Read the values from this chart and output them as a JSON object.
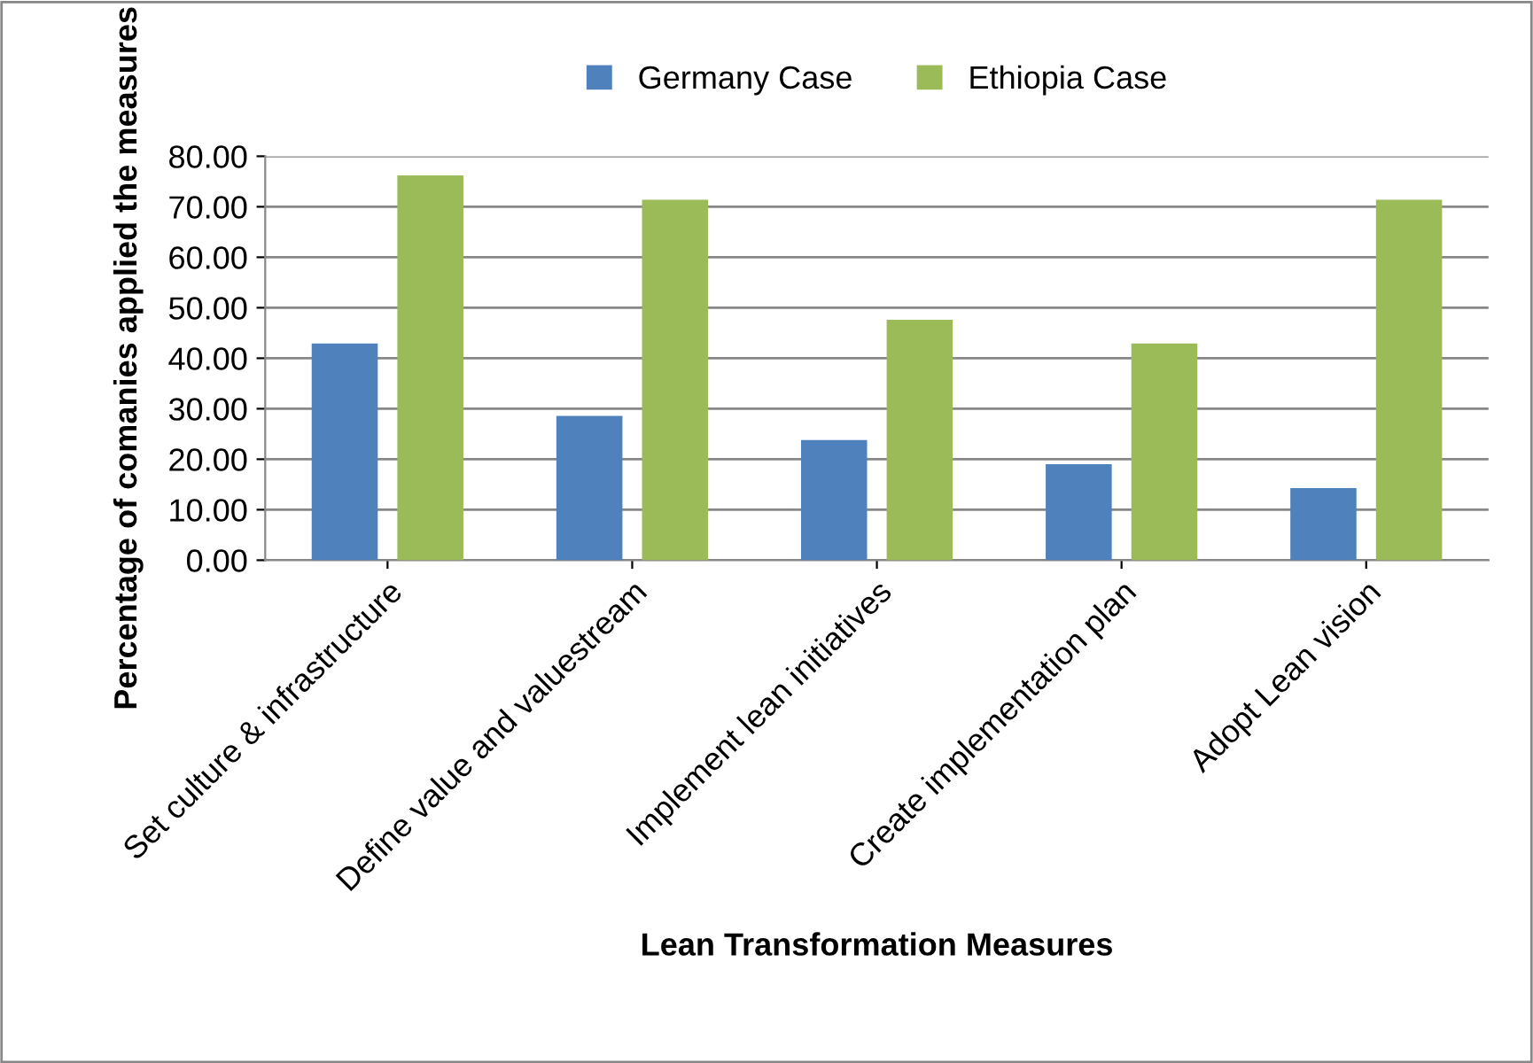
{
  "chart_data": {
    "type": "bar",
    "xlabel": "Lean Transformation Measures",
    "ylabel": "Percentage of comanies applied the measures",
    "categories": [
      "Set culture & infrastructure",
      "Define value and valuestream",
      "Implement lean initiatives",
      "Create implementation plan",
      "Adopt Lean vision"
    ],
    "series": [
      {
        "name": "Germany Case",
        "color": "#4f81bd",
        "values": [
          42.9,
          28.6,
          23.8,
          19.0,
          14.3
        ]
      },
      {
        "name": "Ethiopia Case",
        "color": "#9bbb59",
        "values": [
          76.2,
          71.4,
          47.6,
          42.9,
          71.4
        ]
      }
    ],
    "ylim": [
      0,
      80
    ],
    "yticks": [
      {
        "value": 0,
        "label": "0.00"
      },
      {
        "value": 10,
        "label": "10.00"
      },
      {
        "value": 20,
        "label": "20.00"
      },
      {
        "value": 30,
        "label": "30.00"
      },
      {
        "value": 40,
        "label": "40.00"
      },
      {
        "value": 50,
        "label": "50.00"
      },
      {
        "value": 60,
        "label": "60.00"
      },
      {
        "value": 70,
        "label": "70.00"
      },
      {
        "value": 80,
        "label": "80.00"
      }
    ],
    "grid": "y",
    "legend": "top"
  }
}
